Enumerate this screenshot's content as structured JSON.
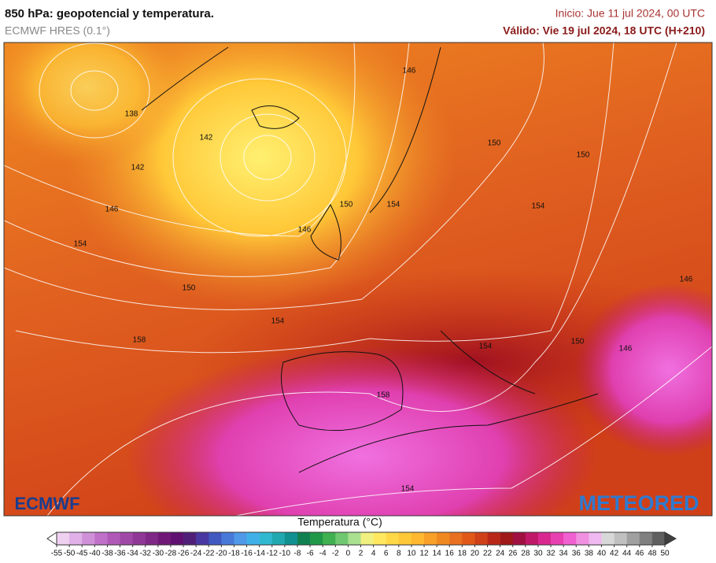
{
  "header": {
    "title": "850 hPa: geopotencial y temperatura.",
    "model": "ECMWF HRES (0.1°)",
    "init": "Inicio: Jue 11 jul 2024, 00 UTC",
    "valid": "Válido: Vie 19 jul 2024, 18 UTC (H+210)"
  },
  "map": {
    "contour_labels": [
      "146",
      "138",
      "142",
      "150",
      "150",
      "142",
      "150",
      "154",
      "154",
      "146",
      "146",
      "154",
      "150",
      "146",
      "154",
      "158",
      "154",
      "150",
      "146",
      "158",
      "154"
    ]
  },
  "logos": {
    "left": "ECMWF",
    "right": "METEORED"
  },
  "legend": {
    "title": "Temperatura (°C)",
    "ticks": [
      -55,
      -50,
      -45,
      -40,
      -38,
      -36,
      -34,
      -32,
      -30,
      -28,
      -26,
      -24,
      -22,
      -20,
      -18,
      -16,
      -14,
      -12,
      -10,
      -8,
      -6,
      -4,
      -2,
      0,
      2,
      4,
      6,
      8,
      10,
      12,
      14,
      16,
      18,
      20,
      22,
      24,
      26,
      28,
      30,
      32,
      34,
      36,
      38,
      40,
      42,
      44,
      46,
      48,
      50
    ],
    "colors": [
      "#f0d0f0",
      "#e0b0e8",
      "#d090d8",
      "#c070c8",
      "#b058b8",
      "#a048a8",
      "#903898",
      "#802888",
      "#701878",
      "#601070",
      "#502078",
      "#4838a0",
      "#4058c0",
      "#4878d8",
      "#5098e8",
      "#40b0e8",
      "#30b8d0",
      "#20a8b0",
      "#109090",
      "#108050",
      "#209848",
      "#40b050",
      "#70c870",
      "#a8e090",
      "#f0f080",
      "#ffe860",
      "#ffd848",
      "#ffc838",
      "#ffb830",
      "#f8a028",
      "#f08820",
      "#e87020",
      "#e05818",
      "#d04018",
      "#b82818",
      "#a01818",
      "#a01040",
      "#c01868",
      "#d82890",
      "#e840b0",
      "#f060d0",
      "#f090e0",
      "#f0b8f0",
      "#d8d8d8",
      "#c0c0c0",
      "#a0a0a0",
      "#808080",
      "#606060"
    ]
  }
}
